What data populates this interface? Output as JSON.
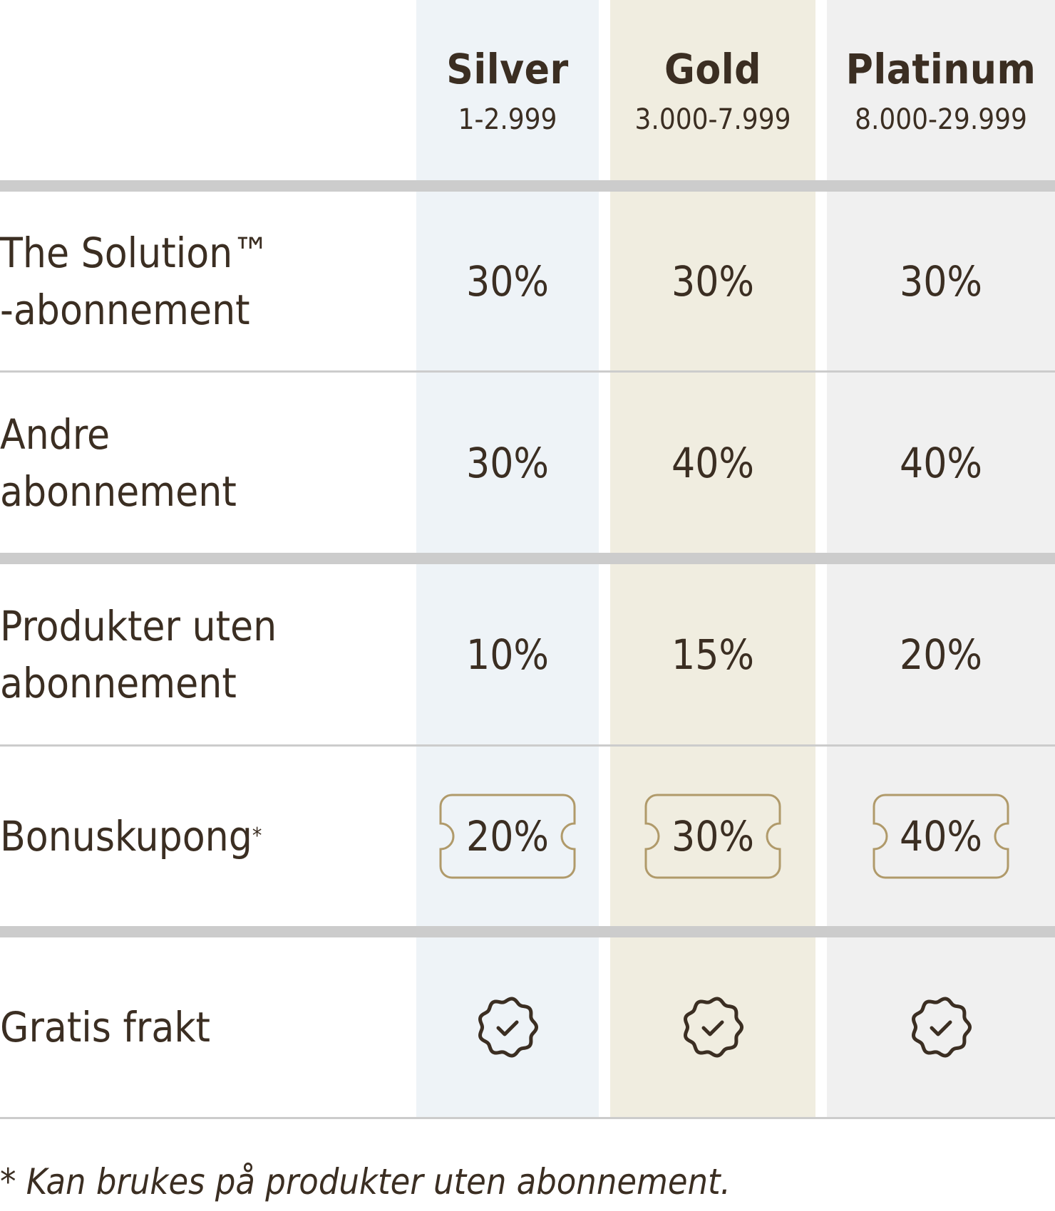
{
  "tiers": [
    {
      "name": "Silver",
      "range": "1-2.999",
      "color": "#eef3f7"
    },
    {
      "name": "Gold",
      "range": "3.000-7.999",
      "color": "#f0ede0"
    },
    {
      "name": "Platinum",
      "range": "8.000-29.999",
      "color": "#f0f0f0"
    }
  ],
  "rows": [
    {
      "label": "The Solution™ -abonnement",
      "values": [
        "30%",
        "30%",
        "30%"
      ]
    },
    {
      "label": "Andre abonnement",
      "values": [
        "30%",
        "40%",
        "40%"
      ]
    },
    {
      "label": "Produkter uten abonnement",
      "values": [
        "10%",
        "15%",
        "20%"
      ]
    },
    {
      "label": "Bonuskupong",
      "sup": "*",
      "values": [
        "20%",
        "30%",
        "40%"
      ],
      "icon": "coupon-icon"
    },
    {
      "label": "Gratis frakt",
      "icon": "check-badge-icon",
      "values": [
        true,
        true,
        true
      ]
    }
  ],
  "footnote": "* Kan brukes på produkter uten abonnement.",
  "colors": {
    "text": "#3b2e22",
    "coupon_border": "#b09a6a",
    "divider": "#cccccc"
  }
}
